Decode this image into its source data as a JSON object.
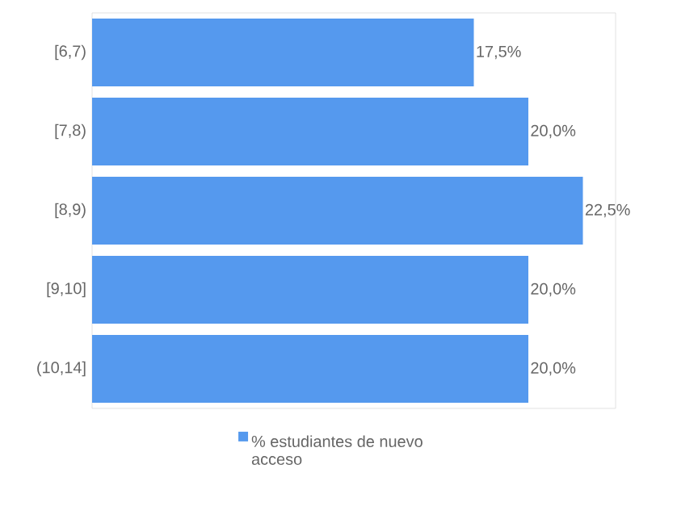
{
  "chart_data": {
    "type": "bar",
    "orientation": "horizontal",
    "categories": [
      "[6,7)",
      "[7,8)",
      "[8,9)",
      "[9,10]",
      "(10,14]"
    ],
    "series": [
      {
        "name": "% estudiantes de nuevo acceso",
        "color": "#5599ee",
        "values": [
          17.5,
          20.0,
          22.5,
          20.0,
          20.0
        ],
        "value_labels": [
          "17,5%",
          "20,0%",
          "22,5%",
          "20,0%",
          "20,0%"
        ]
      }
    ],
    "xlim": [
      0,
      24
    ],
    "tick_labels": "y",
    "legend": "bottom"
  }
}
